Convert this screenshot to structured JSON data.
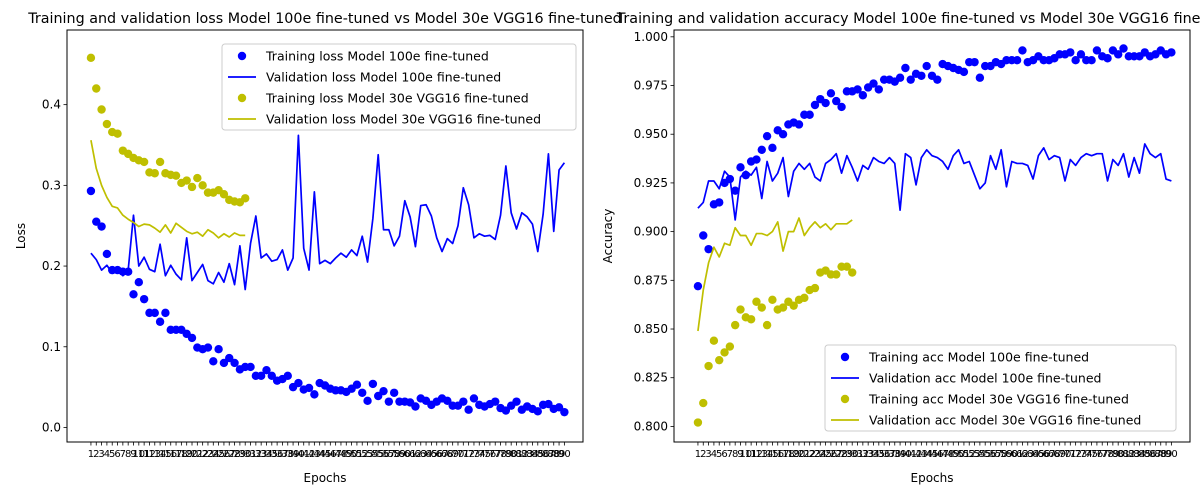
{
  "colors": {
    "model_100e": "#0000ff",
    "model_30e": "#bfbf00",
    "axis": "#000000"
  },
  "chart_data": [
    {
      "type": "line",
      "title": "Training and validation loss Model 100e fine-tuned vs Model 30e VGG16 fine-tuned",
      "xlabel": "Epochs",
      "ylabel": "Loss",
      "xlim": [
        -3.5,
        93.5
      ],
      "ylim": [
        -0.018,
        0.4925
      ],
      "x_ticks": [
        1,
        2,
        3,
        4,
        5,
        6,
        7,
        8,
        9,
        10,
        11,
        12,
        13,
        14,
        15,
        16,
        17,
        18,
        19,
        20,
        21,
        22,
        23,
        24,
        25,
        26,
        27,
        28,
        29,
        30,
        31,
        32,
        33,
        34,
        35,
        36,
        37,
        38,
        39,
        40,
        41,
        42,
        43,
        44,
        45,
        46,
        47,
        48,
        49,
        50,
        51,
        52,
        53,
        54,
        55,
        56,
        57,
        58,
        59,
        60,
        61,
        62,
        63,
        64,
        65,
        66,
        67,
        68,
        69,
        70,
        71,
        72,
        73,
        74,
        75,
        76,
        77,
        78,
        79,
        80,
        81,
        82,
        83,
        84,
        85,
        86,
        87,
        88,
        89,
        90
      ],
      "y_ticks": [
        0.0,
        0.1,
        0.2,
        0.3,
        0.4
      ],
      "y_tick_format": 1,
      "legend_position": "upper right",
      "grid": false,
      "series": [
        {
          "name": "Training loss Model 100e fine-tuned",
          "kind": "scatter",
          "color": "#0000ff",
          "values": [
            0.293,
            0.255,
            0.249,
            0.215,
            0.195,
            0.195,
            0.193,
            0.193,
            0.165,
            0.18,
            0.159,
            0.142,
            0.142,
            0.131,
            0.142,
            0.121,
            0.121,
            0.121,
            0.116,
            0.111,
            0.099,
            0.097,
            0.099,
            0.082,
            0.097,
            0.08,
            0.086,
            0.08,
            0.072,
            0.075,
            0.075,
            0.064,
            0.064,
            0.071,
            0.064,
            0.058,
            0.06,
            0.064,
            0.05,
            0.055,
            0.047,
            0.049,
            0.041,
            0.055,
            0.052,
            0.048,
            0.046,
            0.046,
            0.044,
            0.048,
            0.053,
            0.043,
            0.033,
            0.054,
            0.039,
            0.045,
            0.032,
            0.043,
            0.032,
            0.032,
            0.031,
            0.026,
            0.036,
            0.033,
            0.028,
            0.032,
            0.036,
            0.033,
            0.027,
            0.027,
            0.032,
            0.022,
            0.036,
            0.028,
            0.026,
            0.029,
            0.032,
            0.024,
            0.021,
            0.027,
            0.032,
            0.022,
            0.026,
            0.023,
            0.02,
            0.028,
            0.029,
            0.023,
            0.025,
            0.019
          ]
        },
        {
          "name": "Validation loss Model 100e fine-tuned",
          "kind": "line",
          "color": "#0000ff",
          "values": [
            0.216,
            0.208,
            0.195,
            0.201,
            0.191,
            0.196,
            0.188,
            0.195,
            0.263,
            0.2,
            0.211,
            0.196,
            0.193,
            0.227,
            0.188,
            0.201,
            0.19,
            0.183,
            0.235,
            0.182,
            0.192,
            0.202,
            0.182,
            0.178,
            0.192,
            0.18,
            0.203,
            0.177,
            0.225,
            0.171,
            0.228,
            0.262,
            0.21,
            0.215,
            0.206,
            0.208,
            0.22,
            0.195,
            0.21,
            0.362,
            0.222,
            0.195,
            0.292,
            0.203,
            0.207,
            0.203,
            0.21,
            0.216,
            0.211,
            0.22,
            0.213,
            0.237,
            0.205,
            0.259,
            0.338,
            0.245,
            0.245,
            0.225,
            0.237,
            0.281,
            0.261,
            0.224,
            0.275,
            0.276,
            0.262,
            0.235,
            0.218,
            0.234,
            0.228,
            0.25,
            0.297,
            0.276,
            0.235,
            0.24,
            0.237,
            0.238,
            0.233,
            0.263,
            0.324,
            0.266,
            0.246,
            0.266,
            0.261,
            0.252,
            0.218,
            0.264,
            0.339,
            0.243,
            0.319,
            0.328
          ]
        },
        {
          "name": "Training loss Model 30e VGG16 fine-tuned",
          "kind": "scatter",
          "color": "#bfbf00",
          "values": [
            0.458,
            0.42,
            0.394,
            0.376,
            0.366,
            0.364,
            0.343,
            0.339,
            0.334,
            0.331,
            0.329,
            0.316,
            0.315,
            0.329,
            0.315,
            0.313,
            0.312,
            0.303,
            0.306,
            0.298,
            0.309,
            0.3,
            0.291,
            0.291,
            0.294,
            0.289,
            0.282,
            0.28,
            0.279,
            0.284
          ]
        },
        {
          "name": "Validation loss Model 30e VGG16 fine-tuned",
          "kind": "line",
          "color": "#bfbf00",
          "values": [
            0.356,
            0.321,
            0.3,
            0.285,
            0.274,
            0.272,
            0.263,
            0.258,
            0.254,
            0.249,
            0.252,
            0.251,
            0.247,
            0.242,
            0.251,
            0.241,
            0.253,
            0.248,
            0.243,
            0.24,
            0.242,
            0.237,
            0.245,
            0.241,
            0.235,
            0.24,
            0.236,
            0.241,
            0.238,
            0.238
          ]
        }
      ]
    },
    {
      "type": "line",
      "title": "Training and validation accuracy Model 100e fine-tuned vs Model 30e VGG16 fine-tuned",
      "xlabel": "Epochs",
      "ylabel": "Accuracy",
      "xlim": [
        -3.5,
        93.5
      ],
      "ylim": [
        0.792,
        1.0035
      ],
      "x_ticks": [
        1,
        2,
        3,
        4,
        5,
        6,
        7,
        8,
        9,
        10,
        11,
        12,
        13,
        14,
        15,
        16,
        17,
        18,
        19,
        20,
        21,
        22,
        23,
        24,
        25,
        26,
        27,
        28,
        29,
        30,
        31,
        32,
        33,
        34,
        35,
        36,
        37,
        38,
        39,
        40,
        41,
        42,
        43,
        44,
        45,
        46,
        47,
        48,
        49,
        50,
        51,
        52,
        53,
        54,
        55,
        56,
        57,
        58,
        59,
        60,
        61,
        62,
        63,
        64,
        65,
        66,
        67,
        68,
        69,
        70,
        71,
        72,
        73,
        74,
        75,
        76,
        77,
        78,
        79,
        80,
        81,
        82,
        83,
        84,
        85,
        86,
        87,
        88,
        89,
        90
      ],
      "y_ticks": [
        0.8,
        0.825,
        0.85,
        0.875,
        0.9,
        0.925,
        0.95,
        0.975,
        1.0
      ],
      "y_tick_format": 3,
      "legend_position": "lower right",
      "grid": false,
      "series": [
        {
          "name": "Training acc Model 100e fine-tuned",
          "kind": "scatter",
          "color": "#0000ff",
          "values": [
            0.872,
            0.898,
            0.891,
            0.914,
            0.915,
            0.925,
            0.927,
            0.921,
            0.933,
            0.929,
            0.936,
            0.937,
            0.942,
            0.949,
            0.943,
            0.952,
            0.95,
            0.955,
            0.956,
            0.955,
            0.96,
            0.96,
            0.965,
            0.968,
            0.966,
            0.971,
            0.967,
            0.964,
            0.972,
            0.972,
            0.973,
            0.97,
            0.974,
            0.976,
            0.973,
            0.978,
            0.978,
            0.977,
            0.979,
            0.984,
            0.978,
            0.981,
            0.98,
            0.985,
            0.98,
            0.978,
            0.986,
            0.985,
            0.984,
            0.983,
            0.982,
            0.987,
            0.987,
            0.979,
            0.985,
            0.985,
            0.987,
            0.986,
            0.988,
            0.988,
            0.988,
            0.993,
            0.987,
            0.988,
            0.99,
            0.988,
            0.988,
            0.989,
            0.991,
            0.991,
            0.992,
            0.988,
            0.991,
            0.988,
            0.988,
            0.993,
            0.99,
            0.989,
            0.993,
            0.991,
            0.994,
            0.99,
            0.99,
            0.99,
            0.992,
            0.99,
            0.991,
            0.993,
            0.991,
            0.992
          ]
        },
        {
          "name": "Validation acc Model 100e fine-tuned",
          "kind": "line",
          "color": "#0000ff",
          "values": [
            0.912,
            0.915,
            0.926,
            0.926,
            0.922,
            0.931,
            0.928,
            0.906,
            0.928,
            0.931,
            0.929,
            0.933,
            0.917,
            0.936,
            0.926,
            0.93,
            0.938,
            0.918,
            0.931,
            0.935,
            0.932,
            0.935,
            0.928,
            0.926,
            0.935,
            0.937,
            0.94,
            0.93,
            0.939,
            0.933,
            0.926,
            0.934,
            0.932,
            0.938,
            0.936,
            0.935,
            0.938,
            0.935,
            0.911,
            0.94,
            0.938,
            0.924,
            0.938,
            0.942,
            0.939,
            0.938,
            0.936,
            0.932,
            0.939,
            0.942,
            0.935,
            0.936,
            0.929,
            0.922,
            0.925,
            0.939,
            0.932,
            0.942,
            0.923,
            0.936,
            0.935,
            0.935,
            0.934,
            0.927,
            0.939,
            0.943,
            0.937,
            0.939,
            0.938,
            0.926,
            0.937,
            0.934,
            0.938,
            0.94,
            0.939,
            0.94,
            0.94,
            0.926,
            0.937,
            0.934,
            0.94,
            0.928,
            0.938,
            0.93,
            0.945,
            0.94,
            0.938,
            0.94,
            0.927,
            0.926
          ]
        },
        {
          "name": "Training acc Model 30e VGG16 fine-tuned",
          "kind": "scatter",
          "color": "#bfbf00",
          "values": [
            0.802,
            0.812,
            0.831,
            0.844,
            0.834,
            0.838,
            0.841,
            0.852,
            0.86,
            0.856,
            0.855,
            0.864,
            0.861,
            0.852,
            0.865,
            0.86,
            0.861,
            0.864,
            0.862,
            0.865,
            0.866,
            0.87,
            0.871,
            0.879,
            0.88,
            0.878,
            0.878,
            0.882,
            0.882,
            0.879
          ]
        },
        {
          "name": "Validation acc Model 30e VGG16 fine-tuned",
          "kind": "line",
          "color": "#bfbf00",
          "values": [
            0.849,
            0.87,
            0.884,
            0.892,
            0.887,
            0.894,
            0.893,
            0.902,
            0.898,
            0.898,
            0.893,
            0.899,
            0.899,
            0.898,
            0.9,
            0.905,
            0.89,
            0.9,
            0.9,
            0.907,
            0.898,
            0.902,
            0.905,
            0.902,
            0.904,
            0.901,
            0.904,
            0.904,
            0.904,
            0.906
          ]
        }
      ]
    }
  ]
}
